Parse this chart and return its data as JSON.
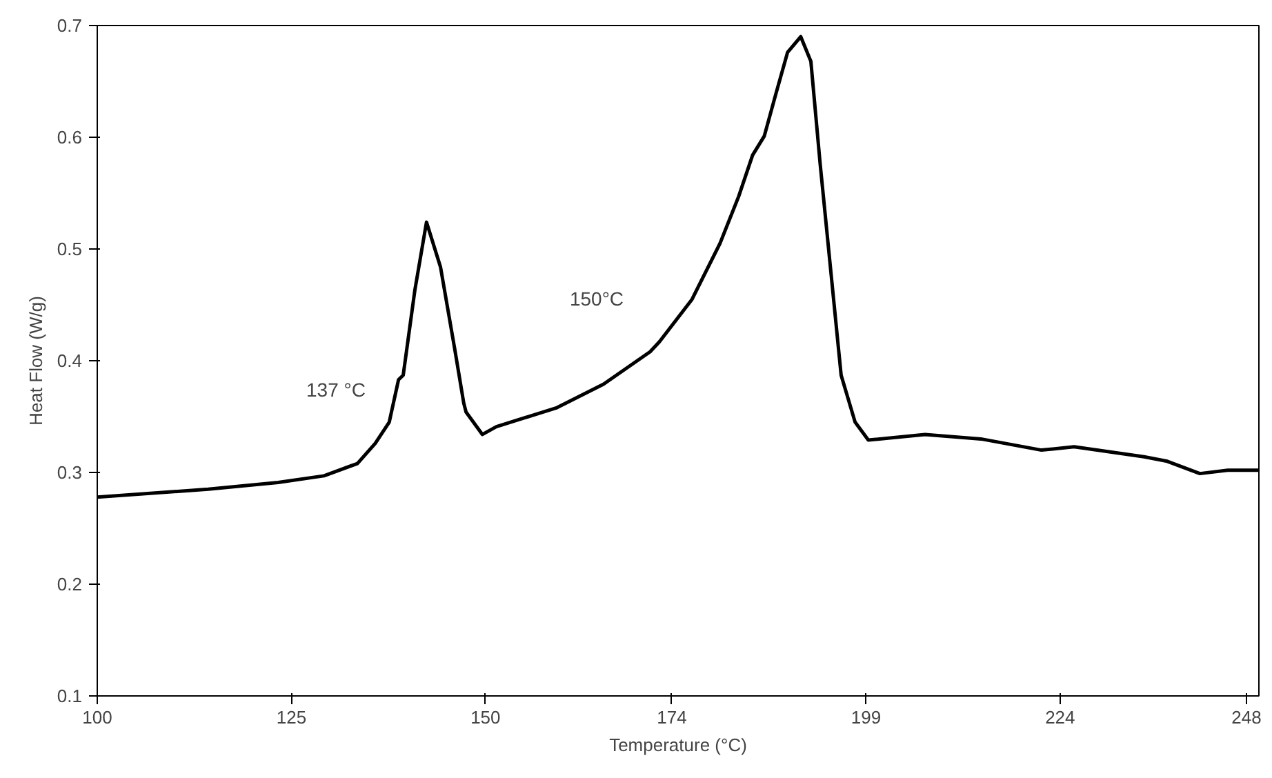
{
  "chart_data": {
    "type": "line",
    "xlabel": "Temperature (°C)",
    "ylabel": "Heat Flow (W/g)",
    "xlim": [
      100,
      249.6
    ],
    "xticks": [
      100,
      125,
      150,
      174,
      199,
      224,
      248
    ],
    "ylim": [
      0.1,
      0.7
    ],
    "yticks": [
      0.1,
      0.2,
      0.3,
      0.4,
      0.5,
      0.6,
      0.7
    ],
    "grid": false,
    "marker": "none",
    "line_style": "solid",
    "annotations": [
      "137 °C",
      "150°C"
    ],
    "series": [
      {
        "color": "#000000",
        "x": [
          100,
          114.3,
          123.3,
          129.2,
          133.5,
          135.8,
          137.6,
          138.8,
          139.4,
          140.9,
          142.4,
          144.2,
          146.0,
          147.2,
          147.5,
          149.6,
          151.4,
          159.2,
          165.2,
          171.2,
          172.4,
          176.6,
          180.2,
          182.6,
          184.4,
          185.9,
          187.4,
          188.9,
          190.6,
          191.9,
          193.1,
          194.6,
          195.8,
          197.6,
          199.3,
          206.6,
          213.8,
          221.6,
          225.8,
          234.8,
          237.8,
          242.0,
          245.6,
          249.6
        ],
        "values": [
          0.278,
          0.285,
          0.291,
          0.297,
          0.308,
          0.326,
          0.345,
          0.383,
          0.387,
          0.463,
          0.524,
          0.484,
          0.412,
          0.362,
          0.354,
          0.334,
          0.341,
          0.358,
          0.379,
          0.408,
          0.417,
          0.455,
          0.505,
          0.547,
          0.584,
          0.601,
          0.639,
          0.676,
          0.69,
          0.668,
          0.576,
          0.471,
          0.387,
          0.345,
          0.329,
          0.334,
          0.33,
          0.32,
          0.323,
          0.314,
          0.31,
          0.299,
          0.302,
          0.302
        ]
      }
    ]
  }
}
